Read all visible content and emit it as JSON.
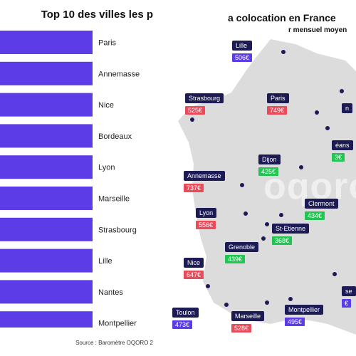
{
  "left": {
    "title": "Top 10 des villes les p",
    "source": "Source : Baromètre OQORO 2"
  },
  "chart_data": {
    "type": "bar",
    "orientation": "horizontal",
    "categories": [
      "Paris",
      "Annemasse",
      "Nice",
      "Bordeaux",
      "Lyon",
      "Marseille",
      "Strasbourg",
      "Lille",
      "Nantes",
      "Montpellier"
    ],
    "title": "Top 10 des villes les p",
    "bar_color": "#5b3ce6"
  },
  "map": {
    "title": "a colocation en France",
    "subtitle": "r mensuel moyen",
    "watermark": "oqoro",
    "colors": {
      "red": "#e94b5b",
      "green": "#23c552",
      "purple": "#5b3ce6",
      "navy": "#1d1b54",
      "land": "#dcdcdc"
    },
    "cities": [
      {
        "name": "Lille",
        "price": "506€",
        "color": "purple"
      },
      {
        "name": "Paris",
        "price": "749€",
        "color": "red"
      },
      {
        "name": "Strasbourg",
        "price": "525€",
        "color": "red"
      },
      {
        "name": "Dijon",
        "price": "425€",
        "color": "green"
      },
      {
        "name": "Annemasse",
        "price": "737€",
        "color": "red"
      },
      {
        "name": "Clermont",
        "price": "434€",
        "color": "green"
      },
      {
        "name": "Lyon",
        "price": "556€",
        "color": "red"
      },
      {
        "name": "St-Etienne",
        "price": "368€",
        "color": "green"
      },
      {
        "name": "Grenoble",
        "price": "439€",
        "color": "green"
      },
      {
        "name": "Nice",
        "price": "647€",
        "color": "red"
      },
      {
        "name": "Montpellier",
        "price": "495€",
        "color": "purple"
      },
      {
        "name": "Marseille",
        "price": "528€",
        "color": "red"
      },
      {
        "name": "Toulon",
        "price": "473€",
        "color": "purple"
      },
      {
        "name": "éans",
        "price": "3€",
        "color": "green"
      },
      {
        "name": "se",
        "price": "€",
        "color": "purple"
      },
      {
        "name": "n",
        "price": "",
        "color": "green"
      }
    ]
  }
}
